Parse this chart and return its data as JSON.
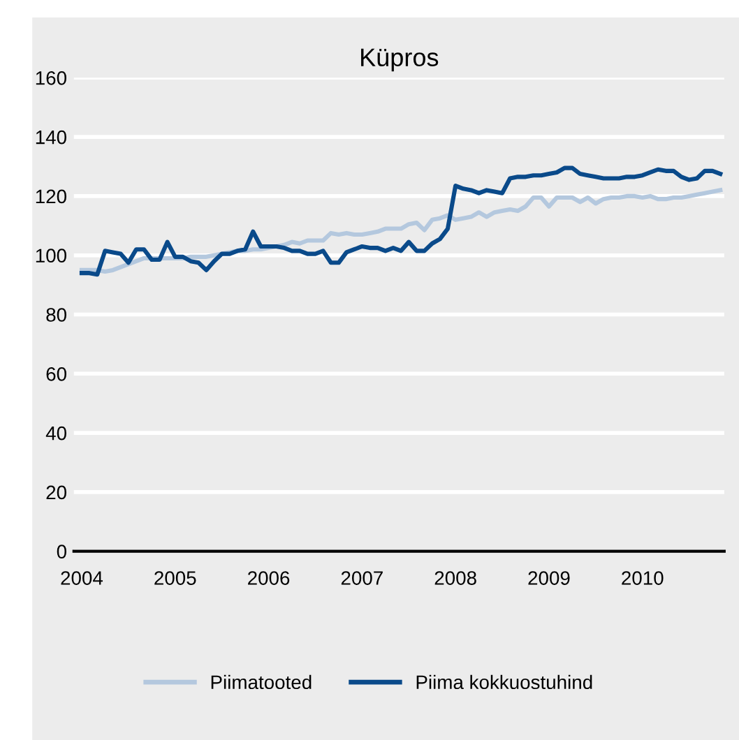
{
  "chart_data": {
    "type": "line",
    "title": "Küpros",
    "categories": [
      "2004",
      null,
      null,
      null,
      null,
      null,
      null,
      null,
      null,
      null,
      null,
      null,
      "2005",
      null,
      null,
      null,
      null,
      null,
      null,
      null,
      null,
      null,
      null,
      null,
      "2006",
      null,
      null,
      null,
      null,
      null,
      null,
      null,
      null,
      null,
      null,
      null,
      "2007",
      null,
      null,
      null,
      null,
      null,
      null,
      null,
      null,
      null,
      null,
      null,
      "2008",
      null,
      null,
      null,
      null,
      null,
      null,
      null,
      null,
      null,
      null,
      null,
      "2009",
      null,
      null,
      null,
      null,
      null,
      null,
      null,
      null,
      null,
      null,
      null,
      "2010",
      null,
      null,
      null,
      null,
      null,
      null,
      null,
      null,
      null,
      null
    ],
    "series": [
      {
        "name": "Piimatooted",
        "color": "#b4c8de",
        "values": [
          95,
          95,
          95,
          94.5,
          95,
          96,
          97,
          98,
          99,
          99,
          99,
          99,
          99,
          99,
          99.5,
          99.5,
          99.5,
          100,
          100.5,
          101,
          101.5,
          101.5,
          102,
          102,
          102.5,
          103,
          103.5,
          104.5,
          104,
          105,
          105,
          105,
          107.5,
          107,
          107.5,
          107,
          107,
          107.5,
          108,
          109,
          109,
          109,
          110.5,
          111,
          108.5,
          112,
          112.5,
          113.5,
          112,
          112.5,
          113,
          114.5,
          113,
          114.5,
          115,
          115.5,
          115,
          116.5,
          119.5,
          119.5,
          116.5,
          119.5,
          119.5,
          119.5,
          118,
          119.5,
          117.5,
          119,
          119.5,
          119.5,
          120,
          120,
          119.5,
          120,
          119,
          119,
          119.5,
          119.5,
          120,
          120.5,
          121,
          121.5,
          122
        ]
      },
      {
        "name": "Piima kokkuostuhind",
        "color": "#0a4a8a",
        "values": [
          94,
          94,
          93.5,
          101.5,
          101,
          100.5,
          97.5,
          102,
          102,
          98.5,
          98.5,
          104.5,
          99.5,
          99.5,
          98,
          97.5,
          95,
          98,
          100.5,
          100.5,
          101.5,
          102,
          108,
          103,
          103,
          103,
          102.5,
          101.5,
          101.5,
          100.5,
          100.5,
          101.5,
          97.5,
          97.5,
          101,
          102,
          103,
          102.5,
          102.5,
          101.5,
          102.5,
          101.5,
          104.5,
          101.5,
          101.5,
          104,
          105.5,
          109,
          123.5,
          122.5,
          122,
          121,
          122,
          121.5,
          121,
          126,
          126.5,
          126.5,
          127,
          127,
          127.5,
          128,
          129.5,
          129.5,
          127.5,
          127,
          126.5,
          126,
          126,
          126,
          126.5,
          126.5,
          127,
          128,
          129,
          128.5,
          128.5,
          126.5,
          125.5,
          126,
          128.5,
          128.5,
          127.5
        ]
      }
    ],
    "ylim": [
      0,
      160
    ],
    "yticks": [
      0,
      20,
      40,
      60,
      80,
      100,
      120,
      140,
      160
    ],
    "grid": "y",
    "legend": "bottom",
    "marker": "none",
    "line_style": "solid"
  }
}
